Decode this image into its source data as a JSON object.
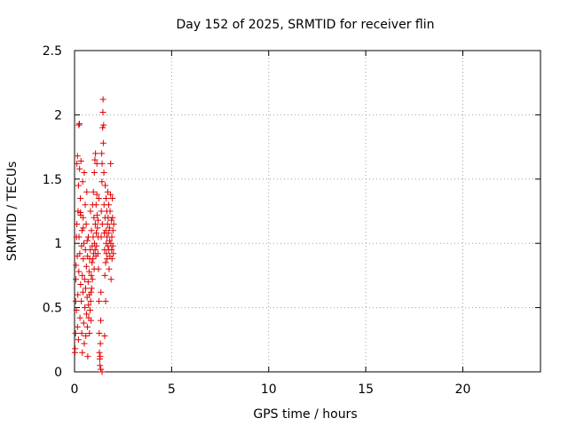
{
  "chart_data": {
    "type": "scatter",
    "title": "Day 152 of 2025, SRMTID for receiver flin",
    "xlabel": "GPS time / hours",
    "ylabel": "SRMTID / TECUs",
    "xlim": [
      0,
      24
    ],
    "ylim": [
      0,
      2.5
    ],
    "xticks": [
      0,
      5,
      10,
      15,
      20
    ],
    "yticks": [
      0,
      0.5,
      1,
      1.5,
      2,
      2.5
    ],
    "xtick_labels": [
      "0",
      "5",
      "10",
      "15",
      "20"
    ],
    "ytick_labels": [
      "0",
      "0.5",
      "1",
      "1.5",
      "2",
      "2.5"
    ],
    "grid": true,
    "marker": "plus",
    "color": "#e00000",
    "series": [
      {
        "points": [
          [
            0.02,
            0.15
          ],
          [
            0.03,
            0.18
          ],
          [
            0.05,
            0.3
          ],
          [
            0.06,
            0.55
          ],
          [
            0.07,
            0.72
          ],
          [
            0.08,
            0.83
          ],
          [
            0.1,
            0.48
          ],
          [
            0.1,
            1.05
          ],
          [
            0.12,
            1.15
          ],
          [
            0.12,
            1.62
          ],
          [
            0.14,
            0.9
          ],
          [
            0.15,
            0.35
          ],
          [
            0.15,
            1.68
          ],
          [
            0.17,
            0.6
          ],
          [
            0.18,
            1.25
          ],
          [
            0.2,
            0.25
          ],
          [
            0.2,
            1.45
          ],
          [
            0.22,
            0.78
          ],
          [
            0.23,
            1.05
          ],
          [
            0.25,
            1.93
          ],
          [
            0.26,
            1.58
          ],
          [
            0.27,
            0.92
          ],
          [
            0.28,
            0.42
          ],
          [
            0.3,
            1.35
          ],
          [
            0.31,
            0.68
          ],
          [
            0.32,
            1.22
          ],
          [
            0.33,
            1.64
          ],
          [
            0.35,
            0.55
          ],
          [
            0.36,
            0.98
          ],
          [
            0.37,
            0.3
          ],
          [
            0.38,
            1.1
          ],
          [
            0.4,
            0.15
          ],
          [
            0.4,
            0.75
          ],
          [
            0.42,
            1.48
          ],
          [
            0.43,
            0.62
          ],
          [
            0.44,
            1.2
          ],
          [
            0.45,
            0.88
          ],
          [
            0.47,
            0.38
          ],
          [
            0.48,
            1.0
          ],
          [
            0.5,
            0.22
          ],
          [
            0.5,
            1.55
          ],
          [
            0.52,
            0.72
          ],
          [
            0.53,
            0.5
          ],
          [
            0.55,
            1.3
          ],
          [
            0.56,
            0.95
          ],
          [
            0.57,
            0.65
          ],
          [
            0.58,
            0.28
          ],
          [
            0.6,
            1.15
          ],
          [
            0.61,
            0.82
          ],
          [
            0.62,
            0.45
          ],
          [
            0.63,
            1.4
          ],
          [
            0.65,
            0.58
          ],
          [
            0.66,
            0.35
          ],
          [
            0.67,
            0.9
          ],
          [
            0.68,
            0.12
          ],
          [
            0.7,
            0.7
          ],
          [
            0.71,
            1.05
          ],
          [
            0.72,
            0.52
          ],
          [
            0.73,
            0.42
          ],
          [
            0.75,
            0.78
          ],
          [
            0.76,
            0.6
          ],
          [
            0.77,
            0.3
          ],
          [
            0.78,
            0.88
          ],
          [
            0.8,
            0.48
          ],
          [
            0.81,
            0.95
          ],
          [
            0.82,
            1.25
          ],
          [
            0.83,
            0.55
          ],
          [
            0.85,
            0.4
          ],
          [
            0.86,
            0.75
          ],
          [
            0.87,
            1.1
          ],
          [
            0.88,
            0.65
          ],
          [
            0.9,
            0.85
          ],
          [
            0.91,
            0.98
          ],
          [
            0.92,
            0.72
          ],
          [
            0.93,
            1.3
          ],
          [
            0.95,
            0.88
          ],
          [
            0.96,
            1.05
          ],
          [
            0.97,
            1.4
          ],
          [
            0.98,
            0.92
          ],
          [
            1.0,
            1.2
          ],
          [
            1.01,
            0.8
          ],
          [
            1.02,
            1.55
          ],
          [
            1.03,
            1.0
          ],
          [
            1.05,
            1.65
          ],
          [
            1.06,
            0.95
          ],
          [
            1.07,
            1.15
          ],
          [
            1.08,
            1.7
          ],
          [
            1.1,
            0.9
          ],
          [
            1.11,
            1.3
          ],
          [
            1.12,
            1.08
          ],
          [
            1.13,
            0.98
          ],
          [
            1.15,
            1.38
          ],
          [
            1.16,
            1.22
          ],
          [
            1.18,
            1.12
          ],
          [
            1.2,
            0.92
          ],
          [
            1.21,
            1.18
          ],
          [
            1.22,
            1.05
          ],
          [
            1.23,
            0.8
          ],
          [
            1.25,
            1.35
          ],
          [
            1.26,
            0.55
          ],
          [
            1.27,
            0.3
          ],
          [
            1.28,
            0.15
          ],
          [
            1.3,
            0.1
          ],
          [
            1.31,
            0.05
          ],
          [
            1.32,
            0.12
          ],
          [
            1.33,
            0.22
          ],
          [
            1.35,
            0.4
          ],
          [
            1.36,
            0.62
          ],
          [
            1.37,
            1.05
          ],
          [
            1.38,
            1.25
          ],
          [
            1.4,
            1.7
          ],
          [
            1.41,
            1.48
          ],
          [
            1.42,
            1.62
          ],
          [
            1.43,
            1.15
          ],
          [
            1.45,
            1.9
          ],
          [
            1.46,
            2.02
          ],
          [
            1.47,
            2.12
          ],
          [
            1.48,
            1.78
          ],
          [
            1.5,
            1.92
          ],
          [
            1.51,
            1.55
          ],
          [
            1.52,
            1.3
          ],
          [
            1.53,
            1.08
          ],
          [
            1.55,
            0.95
          ],
          [
            1.56,
            0.75
          ],
          [
            1.57,
            1.2
          ],
          [
            1.58,
            1.45
          ],
          [
            1.6,
            0.85
          ],
          [
            1.61,
            1.1
          ],
          [
            1.62,
            1.35
          ],
          [
            1.63,
            1.0
          ],
          [
            1.65,
            0.92
          ],
          [
            1.66,
            1.25
          ],
          [
            1.67,
            1.05
          ],
          [
            1.68,
            0.88
          ],
          [
            1.7,
            1.15
          ],
          [
            1.71,
            1.4
          ],
          [
            1.72,
            0.98
          ],
          [
            1.73,
            1.2
          ],
          [
            1.75,
            1.08
          ],
          [
            1.76,
            1.3
          ],
          [
            1.77,
            0.95
          ],
          [
            1.78,
            0.8
          ],
          [
            1.8,
            1.12
          ],
          [
            1.81,
            1.02
          ],
          [
            1.82,
            0.9
          ],
          [
            1.83,
            1.25
          ],
          [
            1.85,
            1.38
          ],
          [
            1.86,
            1.62
          ],
          [
            1.87,
            1.0
          ],
          [
            1.88,
            0.72
          ],
          [
            1.9,
            1.18
          ],
          [
            1.91,
            0.95
          ],
          [
            1.92,
            1.05
          ],
          [
            1.93,
            0.88
          ],
          [
            1.95,
            1.35
          ],
          [
            1.96,
            1.2
          ],
          [
            1.97,
            0.98
          ],
          [
            1.98,
            1.1
          ],
          [
            2.0,
            0.92
          ],
          [
            2.02,
            1.15
          ],
          [
            0.22,
            1.92
          ],
          [
            0.3,
            1.24
          ],
          [
            0.45,
            1.12
          ],
          [
            0.65,
            1.02
          ],
          [
            0.85,
            0.62
          ],
          [
            1.15,
            1.62
          ],
          [
            1.35,
            0.02
          ],
          [
            1.42,
            0.0
          ],
          [
            1.55,
            0.28
          ],
          [
            1.6,
            0.55
          ]
        ]
      }
    ]
  }
}
